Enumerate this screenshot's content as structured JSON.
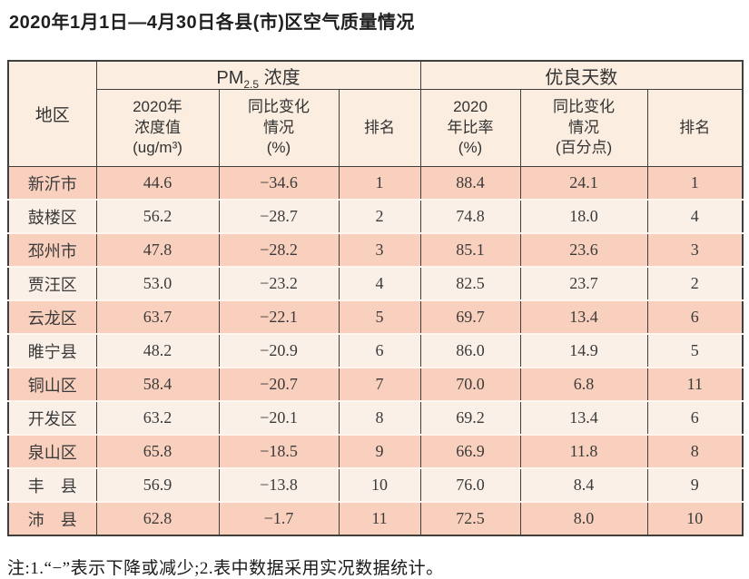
{
  "title": "2020年1月1日—4月30日各县(市)区空气质量情况",
  "table": {
    "corner_header": "地区",
    "groups": {
      "pm25": {
        "prefix": "PM",
        "sub": "2.5",
        "suffix": " 浓度"
      },
      "good_days": {
        "label": "优良天数"
      }
    },
    "subheaders": [
      "2020年\n浓度值\n(ug/m³)",
      "同比变化\n情况\n(%)",
      "排名",
      "2020\n年比率\n(%)",
      "同比变化\n情况\n(百分点)",
      "排名"
    ],
    "rows": [
      [
        "新沂市",
        "44.6",
        "−34.6",
        "1",
        "88.4",
        "24.1",
        "1"
      ],
      [
        "鼓楼区",
        "56.2",
        "−28.7",
        "2",
        "74.8",
        "18.0",
        "4"
      ],
      [
        "邳州市",
        "47.8",
        "−28.2",
        "3",
        "85.1",
        "23.6",
        "3"
      ],
      [
        "贾汪区",
        "53.0",
        "−23.2",
        "4",
        "82.5",
        "23.7",
        "2"
      ],
      [
        "云龙区",
        "63.7",
        "−22.1",
        "5",
        "69.7",
        "13.4",
        "6"
      ],
      [
        "睢宁县",
        "48.2",
        "−20.9",
        "6",
        "86.0",
        "14.9",
        "5"
      ],
      [
        "铜山区",
        "58.4",
        "−20.7",
        "7",
        "70.0",
        "6.8",
        "11"
      ],
      [
        "开发区",
        "63.2",
        "−20.1",
        "8",
        "69.2",
        "13.4",
        "6"
      ],
      [
        "泉山区",
        "65.8",
        "−18.5",
        "9",
        "66.9",
        "11.8",
        "8"
      ],
      [
        "丰　县",
        "56.9",
        "−13.8",
        "10",
        "76.0",
        "8.4",
        "9"
      ],
      [
        "沛　县",
        "62.8",
        "−1.7",
        "11",
        "72.5",
        "8.0",
        "10"
      ]
    ]
  },
  "footnote": "注:1.“−”表示下降或减少;2.表中数据采用实况数据统计。",
  "colors": {
    "row_salmon": "#f9d0bd",
    "row_light": "#fbf0e8",
    "header_bg": "#fbeee1",
    "border_dark": "#3f3f3f",
    "row_separator": "#fdf5ee",
    "text": "#333333"
  }
}
